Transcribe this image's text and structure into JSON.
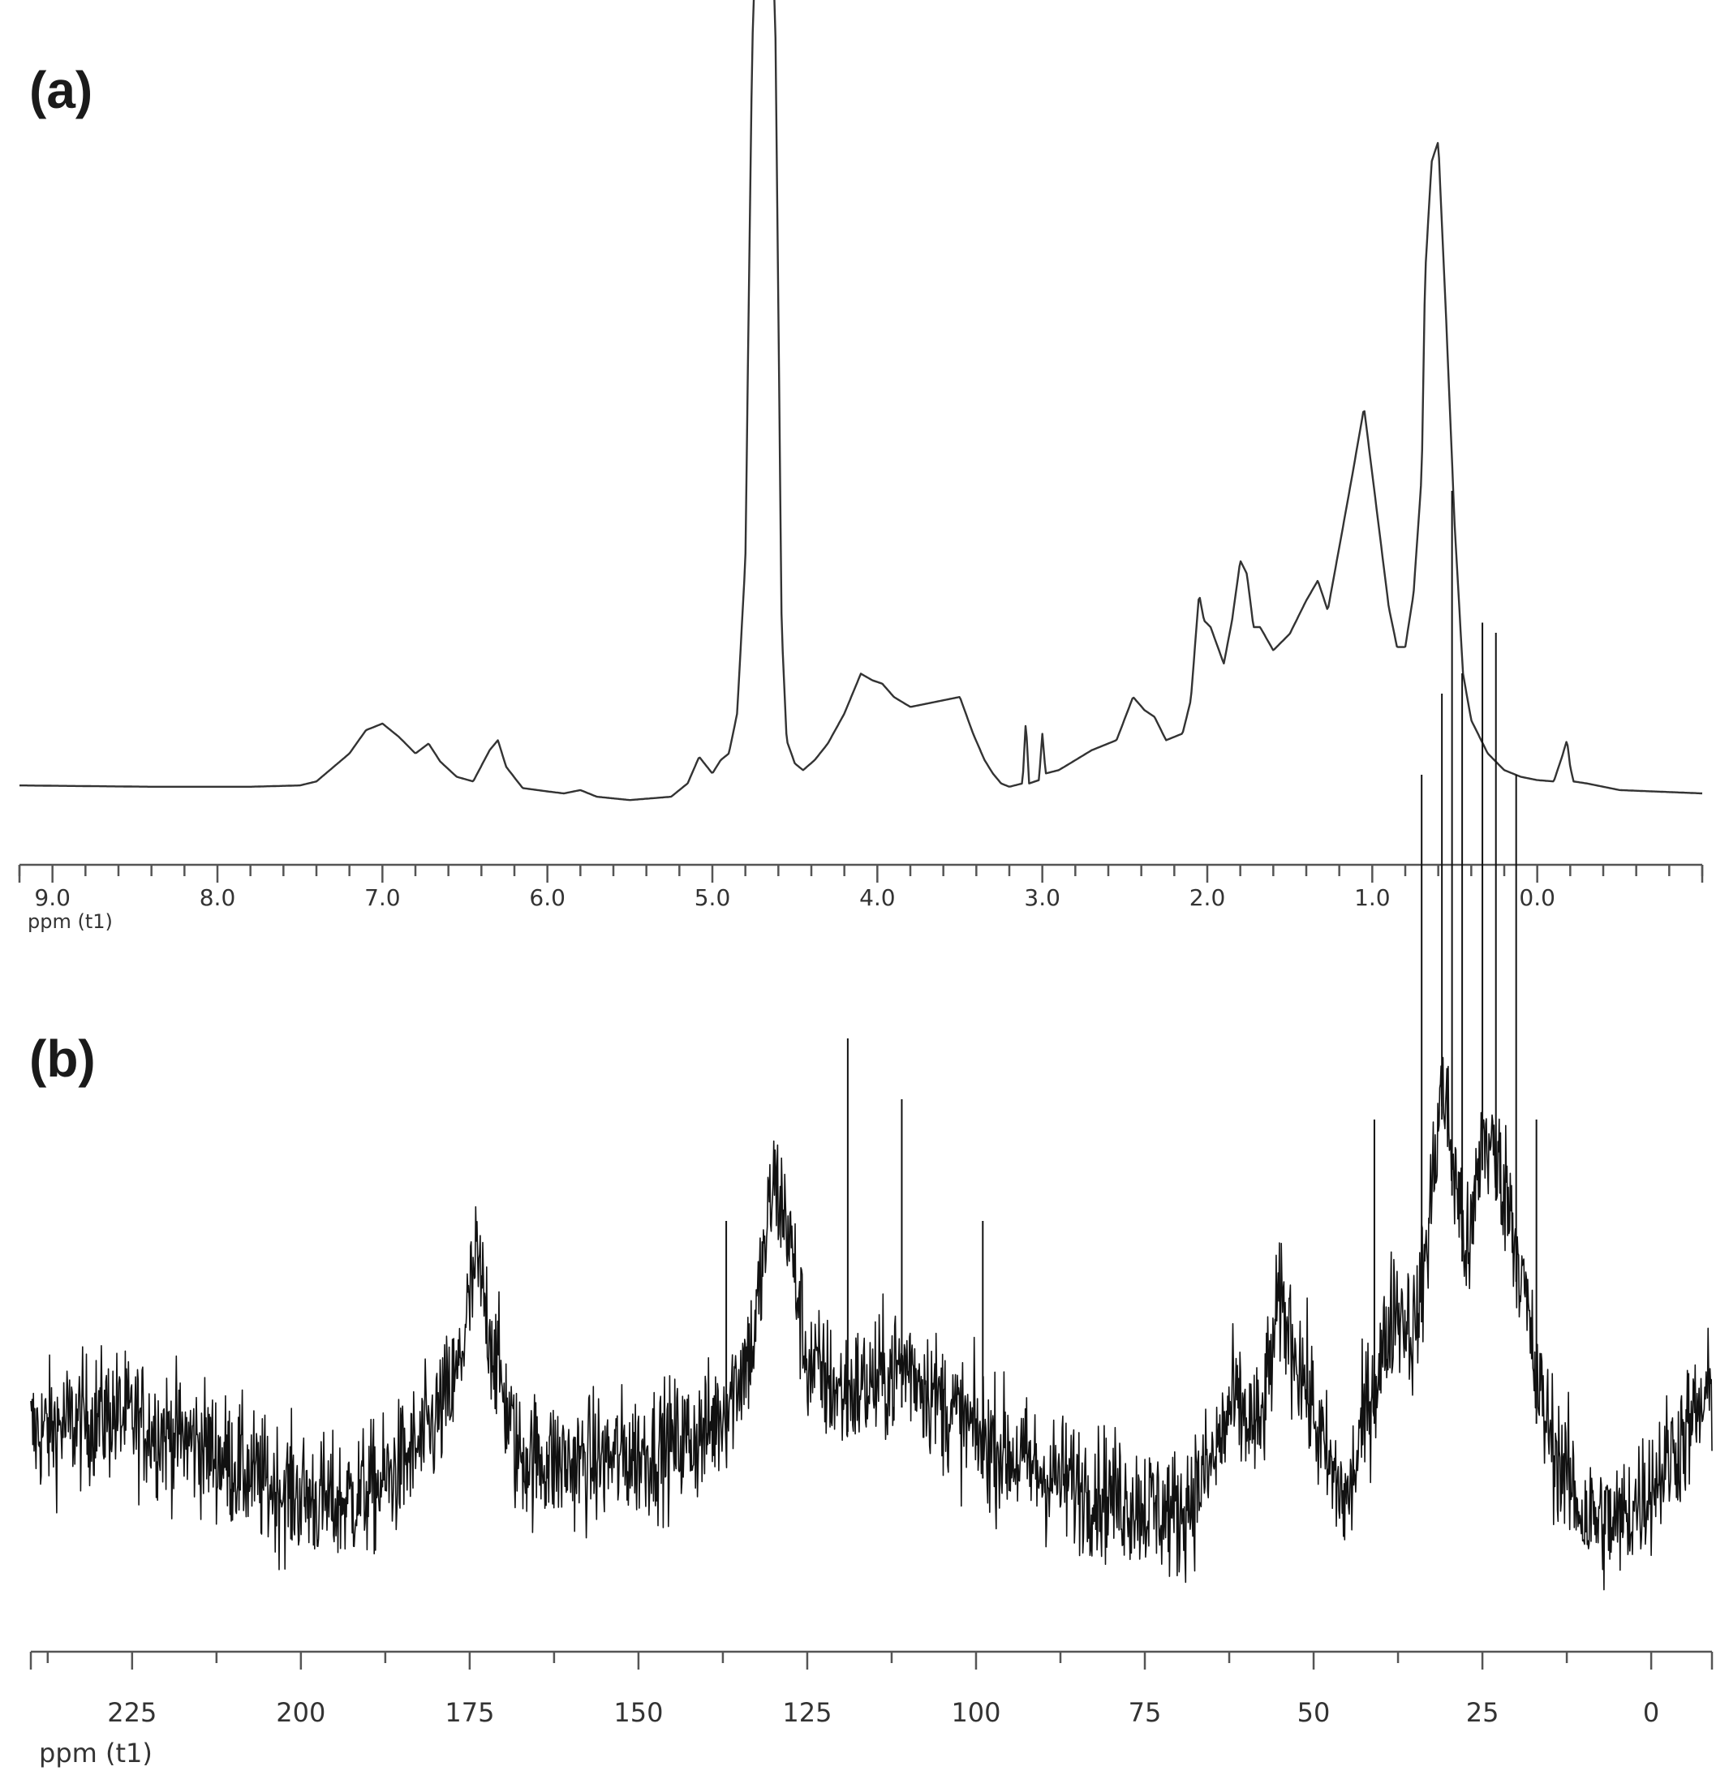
{
  "chart_data": [
    {
      "type": "line",
      "panel_label": "(a)",
      "xlabel": "ppm (t1)",
      "ylabel": "",
      "xlim": [
        9.2,
        -1.0
      ],
      "x_reversed": true,
      "tick_labels": [
        "9.0",
        "8.0",
        "7.0",
        "6.0",
        "5.0",
        "4.0",
        "3.0",
        "2.0",
        "1.0",
        "0.0"
      ],
      "tick_values": [
        9.0,
        8.0,
        7.0,
        6.0,
        5.0,
        4.0,
        3.0,
        2.0,
        1.0,
        0.0
      ],
      "minor_tick_step": 0.2,
      "grid": false,
      "legend": "none",
      "color": "#333333",
      "series": [
        {
          "x": [
            9.2,
            8.8,
            8.4,
            7.8,
            7.5,
            7.4,
            7.2,
            7.1,
            7.0,
            6.9,
            6.8,
            6.72,
            6.65,
            6.55,
            6.45,
            6.35,
            6.3,
            6.25,
            6.15,
            6.0,
            5.9,
            5.8,
            5.7,
            5.5,
            5.25,
            5.15,
            5.08,
            5.0,
            4.95,
            4.9,
            4.85,
            4.8,
            4.76,
            4.73,
            4.7,
            4.65,
            4.62,
            4.58,
            4.55,
            4.5,
            4.45,
            4.38,
            4.3,
            4.2,
            4.1,
            4.03,
            3.97,
            3.9,
            3.8,
            3.7,
            3.6,
            3.5,
            3.42,
            3.35,
            3.3,
            3.25,
            3.2,
            3.12,
            3.1,
            3.08,
            3.02,
            3.0,
            2.98,
            2.9,
            2.7,
            2.55,
            2.45,
            2.38,
            2.32,
            2.25,
            2.15,
            2.1,
            2.05,
            2.02,
            1.98,
            1.9,
            1.85,
            1.8,
            1.76,
            1.72,
            1.68,
            1.6,
            1.5,
            1.4,
            1.33,
            1.27,
            1.2,
            1.12,
            1.05,
            1.0,
            0.95,
            0.9,
            0.85,
            0.8,
            0.75,
            0.7,
            0.68,
            0.64,
            0.6,
            0.55,
            0.5,
            0.45,
            0.4,
            0.3,
            0.2,
            0.1,
            0.0,
            -0.1,
            -0.15,
            -0.18,
            -0.2,
            -0.22,
            -0.3,
            -0.5,
            -1.0
          ],
          "y": [
            1.2,
            1.1,
            1.0,
            1.0,
            1.2,
            1.8,
            6.0,
            9.5,
            10.5,
            8.5,
            6.0,
            7.5,
            4.8,
            2.5,
            1.8,
            6.5,
            8.0,
            4.0,
            0.8,
            0.3,
            0.0,
            0.5,
            -0.5,
            -1.0,
            -0.5,
            1.5,
            5.5,
            3.0,
            5.0,
            6.0,
            12.0,
            35.0,
            110.0,
            140.0,
            145.0,
            140.0,
            120.0,
            25.0,
            8.0,
            4.5,
            3.5,
            5.0,
            7.5,
            12.0,
            18.0,
            17.0,
            16.5,
            14.5,
            13.0,
            13.5,
            14.0,
            14.5,
            9.0,
            5.0,
            3.0,
            1.5,
            1.0,
            1.5,
            11.0,
            1.5,
            2.0,
            9.0,
            3.0,
            3.5,
            6.5,
            8.0,
            14.5,
            12.5,
            11.5,
            8.0,
            9.0,
            14.0,
            30.0,
            26.0,
            25.0,
            19.5,
            26.0,
            35.0,
            33.0,
            25.0,
            25.0,
            21.5,
            24.0,
            29.0,
            32.0,
            27.5,
            37.0,
            48.0,
            58.0,
            48.0,
            38.0,
            28.0,
            22.0,
            22.0,
            30.0,
            48.0,
            78.0,
            95.0,
            98.0,
            70.0,
            40.0,
            18.0,
            11.0,
            6.0,
            3.5,
            2.5,
            2.0,
            1.8,
            5.5,
            8.0,
            4.0,
            1.8,
            1.5,
            0.5,
            0.0
          ]
        }
      ]
    },
    {
      "type": "line",
      "panel_label": "(b)",
      "xlabel": "ppm (t1)",
      "ylabel": "",
      "xlim": [
        240,
        -9
      ],
      "x_reversed": true,
      "tick_labels": [
        "225",
        "200",
        "175",
        "150",
        "125",
        "100",
        "75",
        "50",
        "25",
        "0"
      ],
      "tick_values": [
        225,
        200,
        175,
        150,
        125,
        100,
        75,
        50,
        25,
        0
      ],
      "minor_tick_step": 12.5,
      "grid": false,
      "legend": "none",
      "color": "#111111",
      "noisy": true,
      "series": [
        {
          "x": [
            240,
            228,
            215,
            205,
            195,
            188,
            182,
            177,
            174,
            171,
            168,
            160,
            150,
            140,
            137,
            133,
            130,
            128,
            125,
            120,
            115,
            110,
            105,
            100,
            95,
            90,
            80,
            70,
            65,
            62,
            58,
            55,
            52,
            48,
            45,
            42,
            40,
            38,
            35,
            33,
            31,
            29,
            27,
            25,
            23,
            21,
            19,
            17,
            14,
            10,
            5,
            0,
            -5,
            -9
          ],
          "y": [
            5,
            7,
            4,
            0,
            -2,
            0,
            4,
            10,
            22,
            12,
            3,
            2,
            3,
            5,
            8,
            14,
            30,
            26,
            12,
            9,
            10,
            12,
            8,
            5,
            3,
            1,
            -1,
            -3,
            2,
            8,
            5,
            18,
            12,
            2,
            -2,
            8,
            12,
            18,
            15,
            25,
            40,
            30,
            22,
            35,
            32,
            28,
            20,
            10,
            3,
            -3,
            -4,
            0,
            5,
            9
          ]
        }
      ],
      "sharp_peaks": [
        {
          "x": 137,
          "y": 26
        },
        {
          "x": 119,
          "y": 44
        },
        {
          "x": 111,
          "y": 38
        },
        {
          "x": 99,
          "y": 26
        },
        {
          "x": 41,
          "y": 36
        },
        {
          "x": 34,
          "y": 70
        },
        {
          "x": 31,
          "y": 78
        },
        {
          "x": 29.5,
          "y": 98
        },
        {
          "x": 28,
          "y": 80
        },
        {
          "x": 25,
          "y": 85
        },
        {
          "x": 23,
          "y": 84
        },
        {
          "x": 20,
          "y": 70
        },
        {
          "x": 17,
          "y": 36
        }
      ]
    }
  ]
}
